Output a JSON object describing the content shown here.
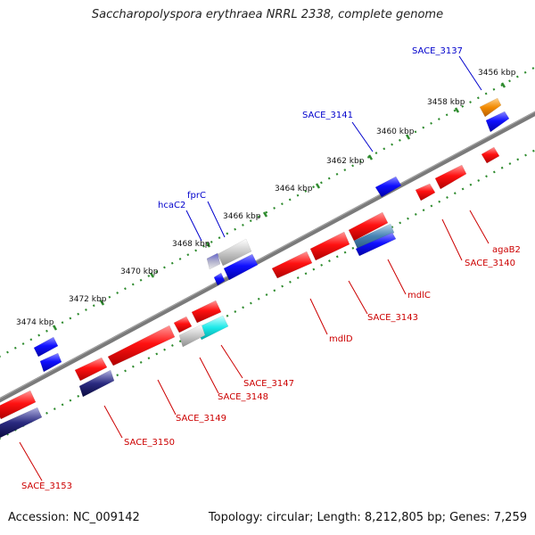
{
  "title": "Saccharopolyspora erythraea NRRL 2338, complete genome",
  "footer": {
    "accession": "Accession: NC_009142",
    "summary": "Topology: circular; Length: 8,212,805 bp; Genes: 7,259"
  },
  "ruler": [
    "3456 kbp",
    "3458 kbp",
    "3460 kbp",
    "3462 kbp",
    "3464 kbp",
    "3466 kbp",
    "3468 kbp",
    "3470 kbp",
    "3472 kbp",
    "3474 kbp"
  ],
  "colors": {
    "forward_label": "#0000cc",
    "reverse_label": "#cc0000",
    "backbone": "#7a7a7a",
    "dots": "#2e8b2e"
  },
  "forward_labels": [
    "SACE_3137",
    "SACE_3141",
    "fprC",
    "hcaC2"
  ],
  "reverse_labels": [
    "agaB2",
    "SACE_3140",
    "mdlC",
    "SACE_3143",
    "mdlD",
    "SACE_3147",
    "SACE_3148",
    "SACE_3149",
    "SACE_3150",
    "SACE_3153"
  ],
  "features": [
    {
      "strand": "+",
      "color": "orange"
    },
    {
      "strand": "+",
      "color": "blue"
    },
    {
      "strand": "+",
      "color": "blue"
    },
    {
      "strand": "+",
      "color": "grey"
    },
    {
      "strand": "+",
      "color": "blue"
    },
    {
      "strand": "+",
      "color": "blue"
    },
    {
      "strand": "+",
      "color": "blue"
    },
    {
      "strand": "+",
      "color": "blue"
    },
    {
      "strand": "-",
      "color": "red"
    },
    {
      "strand": "-",
      "color": "red"
    },
    {
      "strand": "-",
      "color": "red"
    },
    {
      "strand": "-",
      "color": "red"
    },
    {
      "strand": "-",
      "color": "red"
    },
    {
      "strand": "-",
      "color": "red"
    },
    {
      "strand": "-",
      "color": "steelblue"
    },
    {
      "strand": "-",
      "color": "red"
    },
    {
      "strand": "-",
      "color": "red"
    },
    {
      "strand": "-",
      "color": "red"
    },
    {
      "strand": "-",
      "color": "cyan"
    },
    {
      "strand": "-",
      "color": "grey"
    },
    {
      "strand": "-",
      "color": "red"
    },
    {
      "strand": "-",
      "color": "navy"
    },
    {
      "strand": "-",
      "color": "red"
    },
    {
      "strand": "-",
      "color": "navy"
    }
  ]
}
